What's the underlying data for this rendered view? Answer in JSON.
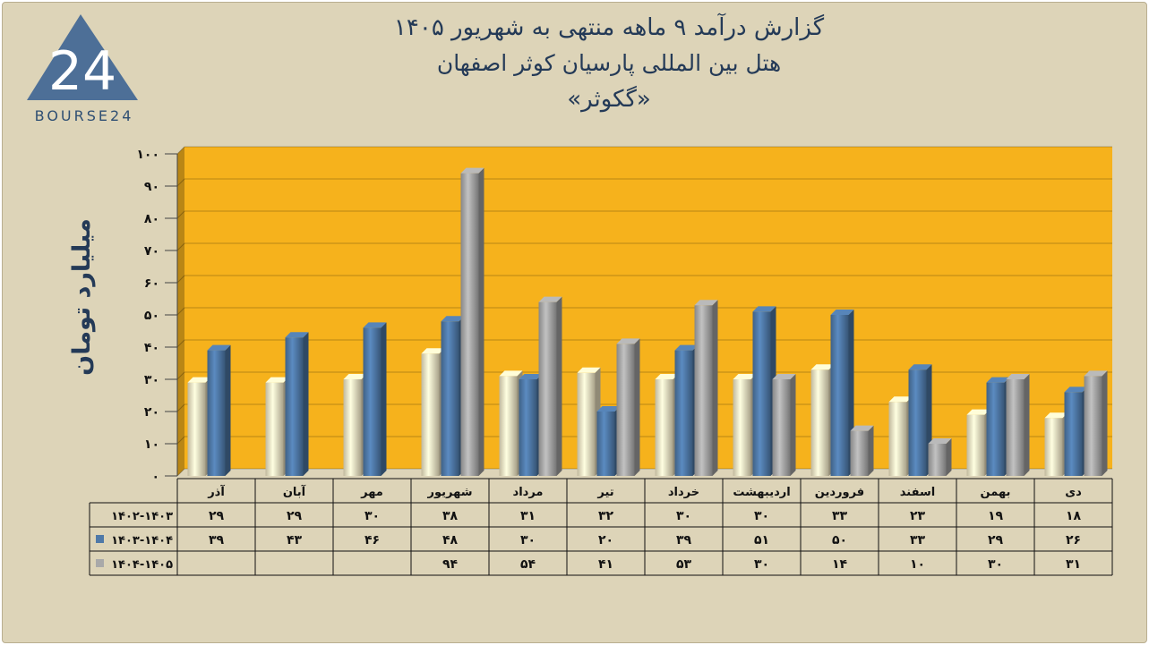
{
  "logo": {
    "text": "BOURSE24",
    "mark": "24"
  },
  "title": {
    "line1": "گزارش  درآمد ۹ ماهه منتهی به شهریور ۱۴۰۵",
    "line2": "هتل بین المللی پارسیان کوثر اصفهان",
    "line3": "«گکوثر»"
  },
  "colors": {
    "background": "#ddd4b8",
    "plot": "#f6b21c",
    "series1": "#f0e6c4",
    "series2": "#4f79a8",
    "series3": "#a9a9a9",
    "text": "#243a57"
  },
  "chart_data": {
    "type": "bar",
    "ylabel": "میلیارد تومان",
    "ylim": [
      0,
      100
    ],
    "yticks": [
      "۰",
      "۱۰",
      "۲۰",
      "۳۰",
      "۴۰",
      "۵۰",
      "۶۰",
      "۷۰",
      "۸۰",
      "۹۰",
      "۱۰۰"
    ],
    "grid": true,
    "categories": [
      "دی",
      "بهمن",
      "اسفند",
      "فروردین",
      "اردیبهشت",
      "خرداد",
      "تیر",
      "مرداد",
      "شهریور",
      "مهر",
      "آبان",
      "آذر"
    ],
    "series": [
      {
        "name": "۱۴۰۲-۱۴۰۳",
        "values": [
          18,
          19,
          23,
          33,
          30,
          30,
          32,
          31,
          38,
          30,
          29,
          29
        ],
        "labels": [
          "۱۸",
          "۱۹",
          "۲۳",
          "۳۳",
          "۳۰",
          "۳۰",
          "۳۲",
          "۳۱",
          "۳۸",
          "۳۰",
          "۲۹",
          "۲۹"
        ]
      },
      {
        "name": "۱۴۰۳-۱۴۰۴",
        "values": [
          26,
          29,
          33,
          50,
          51,
          39,
          20,
          30,
          48,
          46,
          43,
          39
        ],
        "labels": [
          "۲۶",
          "۲۹",
          "۳۳",
          "۵۰",
          "۵۱",
          "۳۹",
          "۲۰",
          "۳۰",
          "۴۸",
          "۴۶",
          "۴۳",
          "۳۹"
        ]
      },
      {
        "name": "۱۴۰۴-۱۴۰۵",
        "values": [
          31,
          30,
          10,
          14,
          30,
          53,
          41,
          54,
          94,
          null,
          null,
          null
        ],
        "labels": [
          "۳۱",
          "۳۰",
          "۱۰",
          "۱۴",
          "۳۰",
          "۵۳",
          "۴۱",
          "۵۴",
          "۹۴",
          "",
          "",
          ""
        ]
      }
    ]
  }
}
